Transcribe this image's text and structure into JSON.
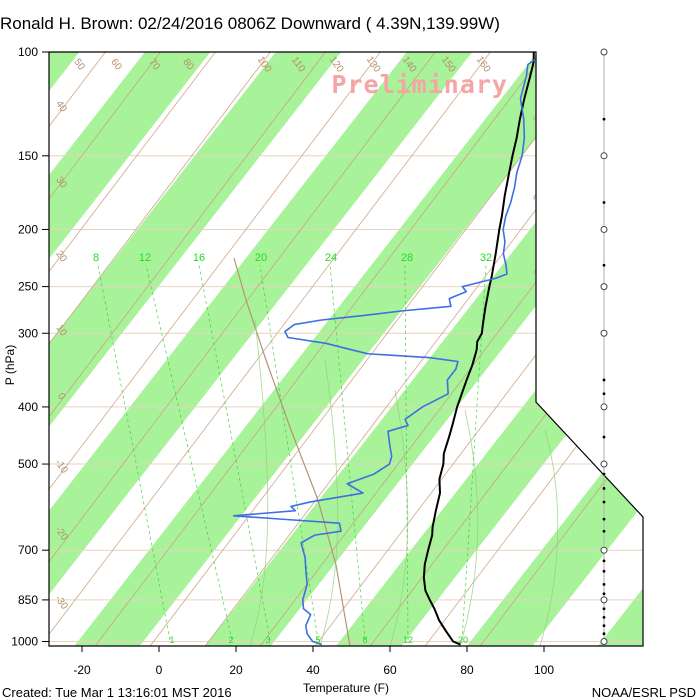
{
  "title": "Ronald H. Brown: 02/24/2016 0806Z Downward ( 4.39N,139.99W)",
  "watermark": "Preliminary",
  "footer": {
    "created": "Created: Tue Mar  1 13:16:01 MST 2016",
    "credit": "NOAA/ESRL PSD"
  },
  "colors": {
    "temperature": "#000000",
    "dewpoint": "#3f6fe0",
    "band": "#a8f29a",
    "dry_adiabat": "#c8a07c",
    "moist_adiabat": "#91d07a",
    "mixing_ratio": "#30d030",
    "watermark": "#f6a5a5"
  },
  "chart_data": {
    "type": "line",
    "subtype": "skew-T log-p sounding",
    "xlabel": "Temperature (F)",
    "ylabel": "P (hPa)",
    "x_ticks": [
      "-20",
      "0",
      "20",
      "40",
      "60",
      "80",
      "100"
    ],
    "y_ticks": [
      "100",
      "150",
      "200",
      "250",
      "300",
      "400",
      "500",
      "700",
      "850",
      "1000"
    ],
    "xlim": [
      -28,
      124
    ],
    "ylim_hpa": [
      1050,
      100
    ],
    "series": [
      {
        "key": "temperature",
        "values": [
          [
            100,
            -23
          ],
          [
            104,
            -21
          ],
          [
            110,
            -19
          ],
          [
            120,
            -16
          ],
          [
            130,
            -13
          ],
          [
            140,
            -10
          ],
          [
            150,
            -7.5
          ],
          [
            160,
            -5
          ],
          [
            175,
            -1.5
          ],
          [
            190,
            2
          ],
          [
            200,
            4
          ],
          [
            220,
            8
          ],
          [
            240,
            11.5
          ],
          [
            250,
            13
          ],
          [
            270,
            16
          ],
          [
            290,
            19
          ],
          [
            300,
            20.5
          ],
          [
            310,
            21
          ],
          [
            320,
            22.5
          ],
          [
            340,
            24.5
          ],
          [
            360,
            26
          ],
          [
            400,
            29
          ],
          [
            430,
            31.5
          ],
          [
            450,
            33
          ],
          [
            480,
            35
          ],
          [
            500,
            37
          ],
          [
            530,
            39
          ],
          [
            560,
            42
          ],
          [
            600,
            44.5
          ],
          [
            640,
            47
          ],
          [
            660,
            48.5
          ],
          [
            700,
            50.5
          ],
          [
            740,
            52.5
          ],
          [
            780,
            55
          ],
          [
            820,
            58
          ],
          [
            850,
            61
          ],
          [
            880,
            64
          ],
          [
            920,
            67.5
          ],
          [
            960,
            71.5
          ],
          [
            1000,
            75.5
          ],
          [
            1012,
            78
          ]
        ]
      },
      {
        "key": "dewpoint",
        "values": [
          [
            100,
            -20
          ],
          [
            105,
            -22
          ],
          [
            110,
            -20
          ],
          [
            120,
            -17
          ],
          [
            130,
            -12
          ],
          [
            140,
            -8
          ],
          [
            150,
            -5
          ],
          [
            160,
            -3
          ],
          [
            170,
            -0.5
          ],
          [
            180,
            1.5
          ],
          [
            190,
            3
          ],
          [
            200,
            5
          ],
          [
            210,
            8
          ],
          [
            220,
            10
          ],
          [
            230,
            13
          ],
          [
            238,
            15
          ],
          [
            242,
            13
          ],
          [
            250,
            6
          ],
          [
            255,
            8
          ],
          [
            262,
            5
          ],
          [
            270,
            7
          ],
          [
            275,
            -5
          ],
          [
            280,
            -14
          ],
          [
            285,
            -24
          ],
          [
            290,
            -30
          ],
          [
            298,
            -31
          ],
          [
            305,
            -29
          ],
          [
            312,
            -18
          ],
          [
            320,
            -10
          ],
          [
            325,
            -5
          ],
          [
            330,
            12
          ],
          [
            335,
            20
          ],
          [
            345,
            21
          ],
          [
            360,
            21
          ],
          [
            380,
            24
          ],
          [
            400,
            20
          ],
          [
            420,
            18
          ],
          [
            430,
            20
          ],
          [
            440,
            16
          ],
          [
            455,
            18
          ],
          [
            470,
            20
          ],
          [
            485,
            22
          ],
          [
            500,
            23
          ],
          [
            520,
            21
          ],
          [
            540,
            16
          ],
          [
            560,
            22
          ],
          [
            580,
            10
          ],
          [
            590,
            6
          ],
          [
            600,
            8
          ],
          [
            612,
            -7
          ],
          [
            620,
            6
          ],
          [
            630,
            22
          ],
          [
            650,
            24
          ],
          [
            660,
            18
          ],
          [
            680,
            16
          ],
          [
            700,
            18
          ],
          [
            720,
            20
          ],
          [
            760,
            23
          ],
          [
            800,
            26
          ],
          [
            850,
            28
          ],
          [
            880,
            30
          ],
          [
            900,
            33
          ],
          [
            940,
            34
          ],
          [
            970,
            36
          ],
          [
            1000,
            39
          ],
          [
            1012,
            42
          ]
        ]
      }
    ],
    "mixing_ratio_labels": [
      "8",
      "12",
      "16",
      "20",
      "24",
      "28",
      "32"
    ],
    "mixing_ratio_labels_bottom": [
      "1",
      "2",
      "3",
      "5",
      "8",
      "12",
      "20"
    ],
    "dry_adiabat_labels": [
      "50",
      "60",
      "70",
      "80",
      "100",
      "110",
      "120",
      "130",
      "140",
      "150",
      "160"
    ],
    "dry_adiabat_left_labels": [
      "40",
      "30",
      "20",
      "10",
      "0",
      "-10",
      "-20",
      "-30"
    ],
    "theta_e_labels": [
      "30",
      "20",
      "10",
      "0",
      "10",
      "20",
      "30"
    ],
    "wind_levels": [
      {
        "p": 100,
        "type": "open"
      },
      {
        "p": 130,
        "type": "dot"
      },
      {
        "p": 150,
        "type": "open"
      },
      {
        "p": 180,
        "type": "dot"
      },
      {
        "p": 200,
        "type": "open"
      },
      {
        "p": 230,
        "type": "dot"
      },
      {
        "p": 250,
        "type": "open"
      },
      {
        "p": 300,
        "type": "open"
      },
      {
        "p": 360,
        "type": "dot"
      },
      {
        "p": 380,
        "type": "dot"
      },
      {
        "p": 400,
        "type": "open"
      },
      {
        "p": 450,
        "type": "dot"
      },
      {
        "p": 500,
        "type": "open"
      },
      {
        "p": 520,
        "type": "dot"
      },
      {
        "p": 550,
        "type": "dot"
      },
      {
        "p": 580,
        "type": "dot"
      },
      {
        "p": 620,
        "type": "dot"
      },
      {
        "p": 650,
        "type": "dot"
      },
      {
        "p": 700,
        "type": "open"
      },
      {
        "p": 730,
        "type": "dot"
      },
      {
        "p": 760,
        "type": "dot"
      },
      {
        "p": 800,
        "type": "dot"
      },
      {
        "p": 830,
        "type": "dot"
      },
      {
        "p": 850,
        "type": "open"
      },
      {
        "p": 880,
        "type": "dot"
      },
      {
        "p": 910,
        "type": "dot"
      },
      {
        "p": 940,
        "type": "dot"
      },
      {
        "p": 970,
        "type": "dot"
      },
      {
        "p": 1000,
        "type": "open"
      }
    ]
  }
}
